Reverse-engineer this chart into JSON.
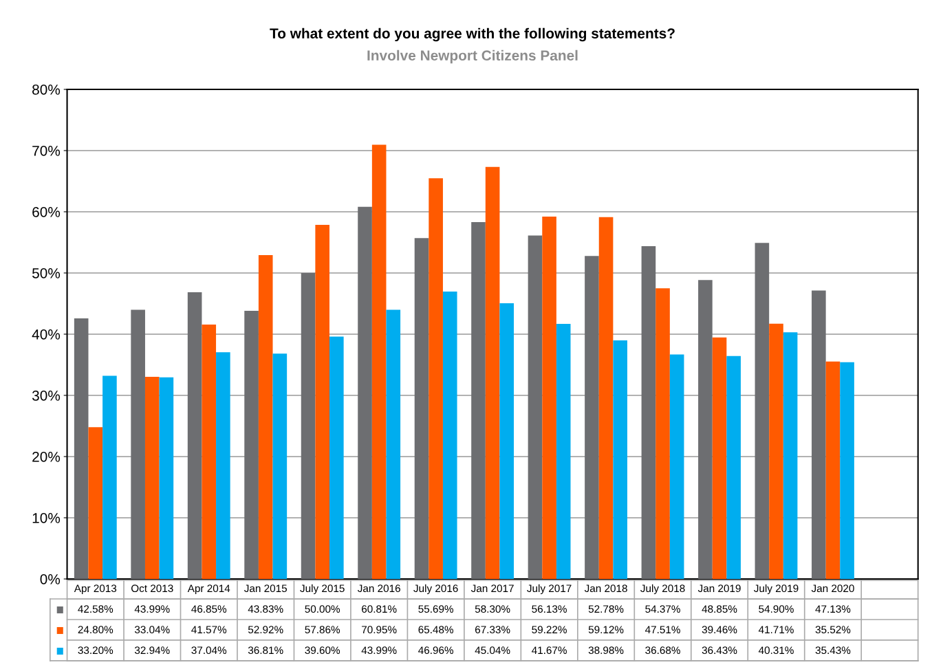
{
  "chart_data": {
    "type": "bar",
    "title": "To what extent do you agree with the following statements?",
    "subtitle": "Involve Newport Citizens Panel",
    "categories": [
      "Apr 2013",
      "Oct 2013",
      "Apr 2014",
      "Jan 2015",
      "July 2015",
      "Jan 2016",
      "July 2016",
      "Jan 2017",
      "July 2017",
      "Jan 2018",
      "July 2018",
      "Jan 2019",
      "July 2019",
      "Jan 2020",
      null
    ],
    "series": [
      {
        "color": "#6d6e71",
        "values": [
          42.58,
          43.99,
          46.85,
          43.83,
          50.0,
          60.81,
          55.69,
          58.3,
          56.13,
          52.78,
          54.37,
          48.85,
          54.9,
          47.13,
          null
        ],
        "value_labels": [
          "42.58%",
          "43.99%",
          "46.85%",
          "43.83%",
          "50.00%",
          "60.81%",
          "55.69%",
          "58.30%",
          "56.13%",
          "52.78%",
          "54.37%",
          "48.85%",
          "54.90%",
          "47.13%",
          null
        ]
      },
      {
        "color": "#ff5a00",
        "values": [
          24.8,
          33.04,
          41.57,
          52.92,
          57.86,
          70.95,
          65.48,
          67.33,
          59.22,
          59.12,
          47.51,
          39.46,
          41.71,
          35.52,
          null
        ],
        "value_labels": [
          "24.80%",
          "33.04%",
          "41.57%",
          "52.92%",
          "57.86%",
          "70.95%",
          "65.48%",
          "67.33%",
          "59.22%",
          "59.12%",
          "47.51%",
          "39.46%",
          "41.71%",
          "35.52%",
          null
        ]
      },
      {
        "color": "#00adef",
        "values": [
          33.2,
          32.94,
          37.04,
          36.81,
          39.6,
          43.99,
          46.96,
          45.04,
          41.67,
          38.98,
          36.68,
          36.43,
          40.31,
          35.43,
          null
        ],
        "value_labels": [
          "33.20%",
          "32.94%",
          "37.04%",
          "36.81%",
          "39.60%",
          "43.99%",
          "46.96%",
          "45.04%",
          "41.67%",
          "38.98%",
          "36.68%",
          "36.43%",
          "40.31%",
          "35.43%",
          null
        ]
      }
    ],
    "ylim": [
      0,
      80
    ],
    "yticks": [
      {
        "value": 0,
        "label": "0%"
      },
      {
        "value": 10,
        "label": "10%"
      },
      {
        "value": 20,
        "label": "20%"
      },
      {
        "value": 30,
        "label": "30%"
      },
      {
        "value": 40,
        "label": "40%"
      },
      {
        "value": 50,
        "label": "50%"
      },
      {
        "value": 60,
        "label": "60%"
      },
      {
        "value": 70,
        "label": "70%"
      },
      {
        "value": 80,
        "label": "80%"
      }
    ],
    "grid": "y"
  }
}
